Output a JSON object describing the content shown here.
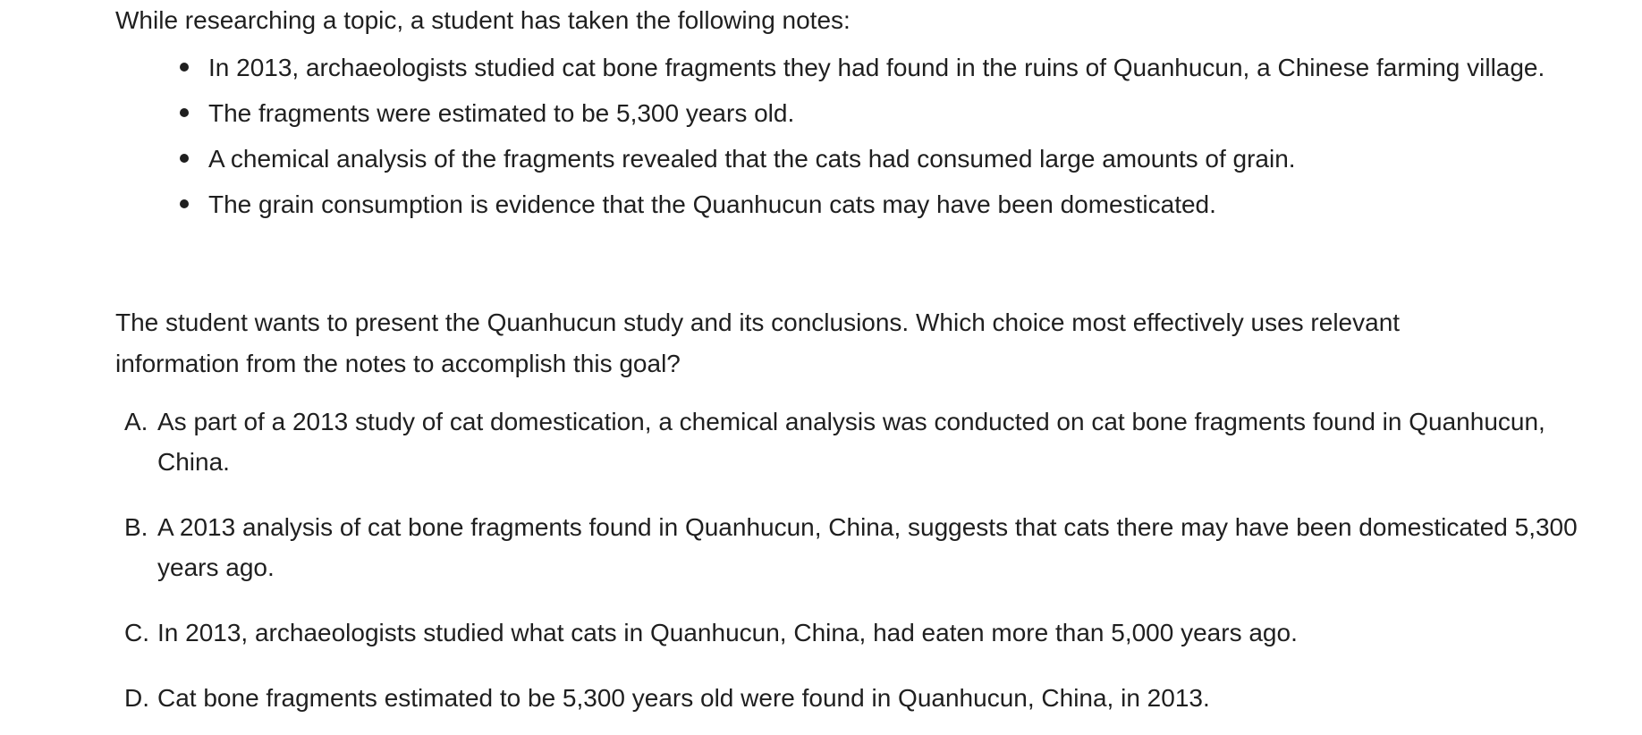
{
  "intro": "While researching a topic, a student has taken the following notes:",
  "notes": [
    "In 2013, archaeologists studied cat bone fragments they had found in the ruins of Quanhucun, a Chinese farming village.",
    "The fragments were estimated to be 5,300 years old.",
    "A chemical analysis of the fragments revealed that the cats had consumed large amounts of grain.",
    "The grain consumption is evidence that the Quanhucun cats may have been domesticated."
  ],
  "question": "The student wants to present the Quanhucun study and its conclusions. Which choice most effectively uses relevant information from the notes to accomplish this goal?",
  "choices": [
    {
      "letter": "A.",
      "text": "As part of a 2013 study of cat domestication, a chemical analysis was conducted on cat bone fragments found in Quanhucun, China."
    },
    {
      "letter": "B.",
      "text": "A 2013 analysis of cat bone fragments found in Quanhucun, China, suggests that cats there may have been domesticated 5,300 years ago."
    },
    {
      "letter": "C.",
      "text": "In 2013, archaeologists studied what cats in Quanhucun, China, had eaten more than 5,000 years ago."
    },
    {
      "letter": "D.",
      "text": "Cat bone fragments estimated to be 5,300 years old were found in Quanhucun, China, in 2013."
    }
  ]
}
